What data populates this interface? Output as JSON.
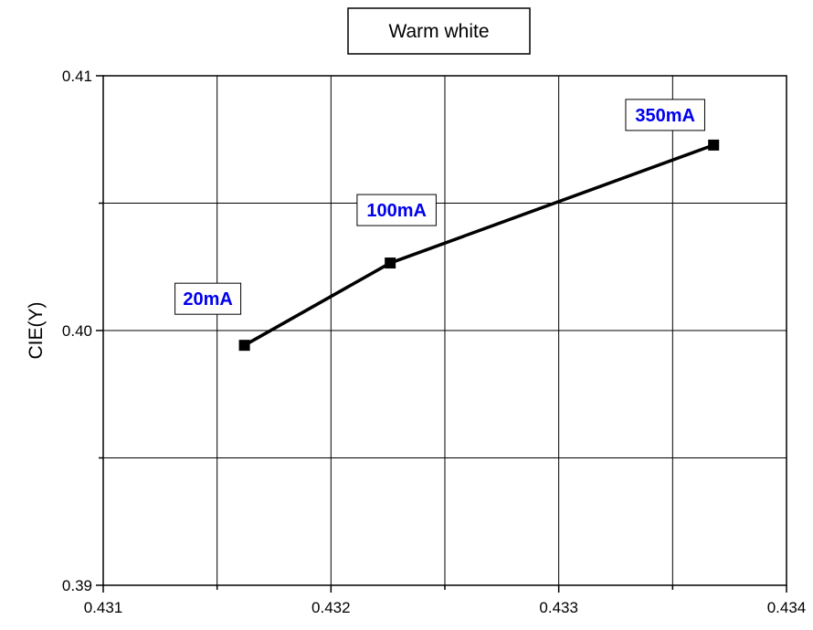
{
  "chart_data": {
    "type": "line",
    "title": "Warm white",
    "xlabel": "",
    "ylabel": "CIE(Y)",
    "xlim": [
      0.431,
      0.434
    ],
    "ylim": [
      0.39,
      0.41
    ],
    "x_ticks": [
      0.431,
      0.432,
      0.433,
      0.434
    ],
    "x_tick_labels": [
      "0.431",
      "0.432",
      "0.433",
      "0.434"
    ],
    "y_ticks": [
      0.39,
      0.4,
      0.41
    ],
    "y_tick_labels": [
      "0.39",
      "0.40",
      "0.41"
    ],
    "x_minor_ticks": [
      0.4315,
      0.4325,
      0.4335
    ],
    "y_minor_ticks": [
      0.395,
      0.405
    ],
    "grid": true,
    "series": [
      {
        "x": [
          0.43162,
          0.43226,
          0.43368
        ],
        "values": [
          0.39942,
          0.40265,
          0.40728
        ],
        "color": "#000000",
        "marker": "square"
      }
    ],
    "annotations": [
      {
        "text": "20mA",
        "x": 0.43162,
        "y": 0.39942,
        "color": "#0000ee"
      },
      {
        "text": "100mA",
        "x": 0.43226,
        "y": 0.40265,
        "color": "#0000ee"
      },
      {
        "text": "350mA",
        "x": 0.43368,
        "y": 0.40728,
        "color": "#0000ee"
      }
    ],
    "colors": {
      "line": "#000000",
      "annotation_text": "#0000ee",
      "grid": "#000000"
    }
  }
}
